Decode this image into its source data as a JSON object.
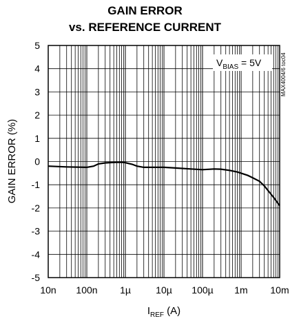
{
  "chart_data": {
    "type": "line",
    "title_line1": "GAIN ERROR",
    "title_line2": "vs. REFERENCE CURRENT",
    "xlabel_main": "I",
    "xlabel_sub": "REF",
    "xlabel_unit": " (A)",
    "ylabel": "GAIN ERROR (%)",
    "x_scale": "log",
    "xlim": [
      1e-08,
      0.01
    ],
    "ylim": [
      -5,
      5
    ],
    "grid": true,
    "x_ticks": [
      {
        "value": 1e-08,
        "label": "10n"
      },
      {
        "value": 1e-07,
        "label": "100n"
      },
      {
        "value": 1e-06,
        "label": "1µ"
      },
      {
        "value": 1e-05,
        "label": "10µ"
      },
      {
        "value": 0.0001,
        "label": "100µ"
      },
      {
        "value": 0.001,
        "label": "1m"
      },
      {
        "value": 0.01,
        "label": "10m"
      }
    ],
    "y_ticks": [
      5,
      4,
      3,
      2,
      1,
      0,
      -1,
      -2,
      -3,
      -4,
      -5
    ],
    "annotation": {
      "main": "V",
      "sub": "BIAS",
      "rest": " = 5V"
    },
    "part_label": "MAX4004/6 toc04",
    "series": [
      {
        "x": [
          1e-08,
          3e-08,
          1e-07,
          1.5e-07,
          2e-07,
          3e-07,
          5e-07,
          8e-07,
          1e-06,
          1.5e-06,
          2e-06,
          3e-06,
          5e-06,
          1e-05,
          2e-05,
          5e-05,
          0.0001,
          0.0002,
          0.0003,
          0.0005,
          0.0008,
          0.001,
          0.0015,
          0.002,
          0.003,
          0.004,
          0.005,
          0.007,
          0.01
        ],
        "y": [
          -0.2,
          -0.23,
          -0.25,
          -0.2,
          -0.1,
          -0.06,
          -0.04,
          -0.03,
          -0.05,
          -0.12,
          -0.2,
          -0.25,
          -0.25,
          -0.25,
          -0.28,
          -0.32,
          -0.35,
          -0.32,
          -0.33,
          -0.38,
          -0.45,
          -0.5,
          -0.6,
          -0.7,
          -0.85,
          -1.05,
          -1.25,
          -1.55,
          -1.9
        ]
      }
    ]
  }
}
